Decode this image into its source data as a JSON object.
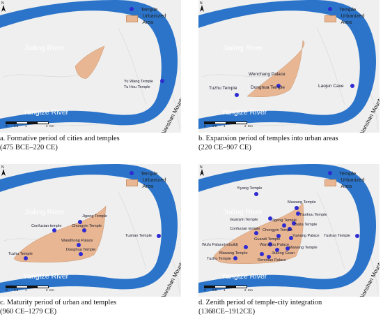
{
  "panels": [
    {
      "caption": "a. Formative period of cities and temples",
      "caption2": "(475 BCE–220 CE)",
      "legend_temple": "Temple",
      "legend_area": "Urbanized Area",
      "jialing": "Jialing River",
      "yangtze": "Yangtze River",
      "mountains": "Nanshan Mountains",
      "scale": [
        "0",
        "0.5",
        "1",
        "2",
        "Km"
      ],
      "north": "N",
      "labels": [
        "Yu Wang Temple",
        "Tu Hou Temple"
      ]
    },
    {
      "caption": "b. Expansion period of temples into urban areas",
      "caption2": "(220 CE–907 CE)",
      "legend_temple": "Temple",
      "legend_area": "Urbanized Area",
      "jialing": "Jialing River",
      "yangtze": "Yangtze River",
      "mountains": "Nanshan Mountains",
      "scale": [
        "0",
        "0.5",
        "1",
        "2",
        "Km"
      ],
      "north": "N",
      "labels": [
        "Wenchang Palace",
        "Donghua Temple",
        "Tuzhu Temple",
        "Laojun Cave"
      ]
    },
    {
      "caption": "c. Maturity period of urban and temples",
      "caption2": "(960 CE–1279 CE)",
      "legend_temple": "Temple",
      "legend_area": "Urbanized Area",
      "jialing": "Jialing River",
      "yangtze": "Yangtze River",
      "mountains": "Nanshan Mountains",
      "scale": [
        "0",
        "0.5",
        "1",
        "2",
        "Km"
      ],
      "north": "N",
      "labels": [
        "Jigeng Temple",
        "Confucian temple",
        "Chongyin Temple",
        "Wandhong Palace",
        "Donghua Temple",
        "Tuzhu Temple",
        "Tushan Temple"
      ]
    },
    {
      "caption": "d. Zenith period of temple-city integration",
      "caption2": "(1368CE–1912CE)",
      "legend_temple": "Temple",
      "legend_area": "Urbanized Area",
      "jialing": "Jialing River",
      "yangtze": "Yangtze River",
      "mountains": "Nanshan Mountains",
      "scale": [
        "0",
        "0.5",
        "1",
        "2",
        "Km"
      ],
      "north": "N",
      "labels": [
        "Yiyang Temple",
        "Mawang Temple",
        "Guanyin Temple",
        "Tianhou Temple",
        "Jigeng Temple",
        "Baita Temple",
        "Confucian temple",
        "Chongyin Temple",
        "Yuwang Palace",
        "Guandi Temple",
        "Wanshou Palace",
        "Wufu Palace(rebuild)",
        "Jiulong Guan",
        "Mawang Temple",
        "Mawang Temple",
        "Tuzhu Temple",
        "Renmiao Palace",
        "Tushan Temple"
      ]
    }
  ],
  "colors": {
    "river": "#2b74c9",
    "urban": "#e8b692",
    "temple": "#2e2bd1",
    "land": "#efefef"
  }
}
